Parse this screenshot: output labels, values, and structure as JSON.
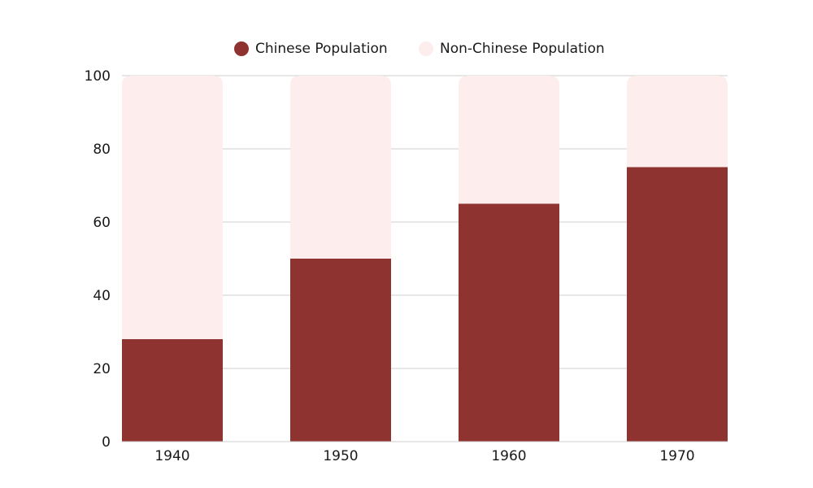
{
  "chart_data": {
    "type": "bar",
    "stacked": true,
    "categories": [
      "1940",
      "1950",
      "1960",
      "1970"
    ],
    "series": [
      {
        "name": "Chinese Population",
        "color": "#8f3330",
        "values": [
          28,
          50,
          65,
          75
        ]
      },
      {
        "name": "Non-Chinese Population",
        "color": "#fdeded",
        "values": [
          72,
          50,
          35,
          25
        ]
      }
    ],
    "y_ticks": [
      "0",
      "20",
      "40",
      "60",
      "80",
      "100"
    ],
    "ylim": [
      0,
      100
    ],
    "grid": true,
    "legend_position": "top-center",
    "title": "",
    "xlabel": "",
    "ylabel": ""
  }
}
